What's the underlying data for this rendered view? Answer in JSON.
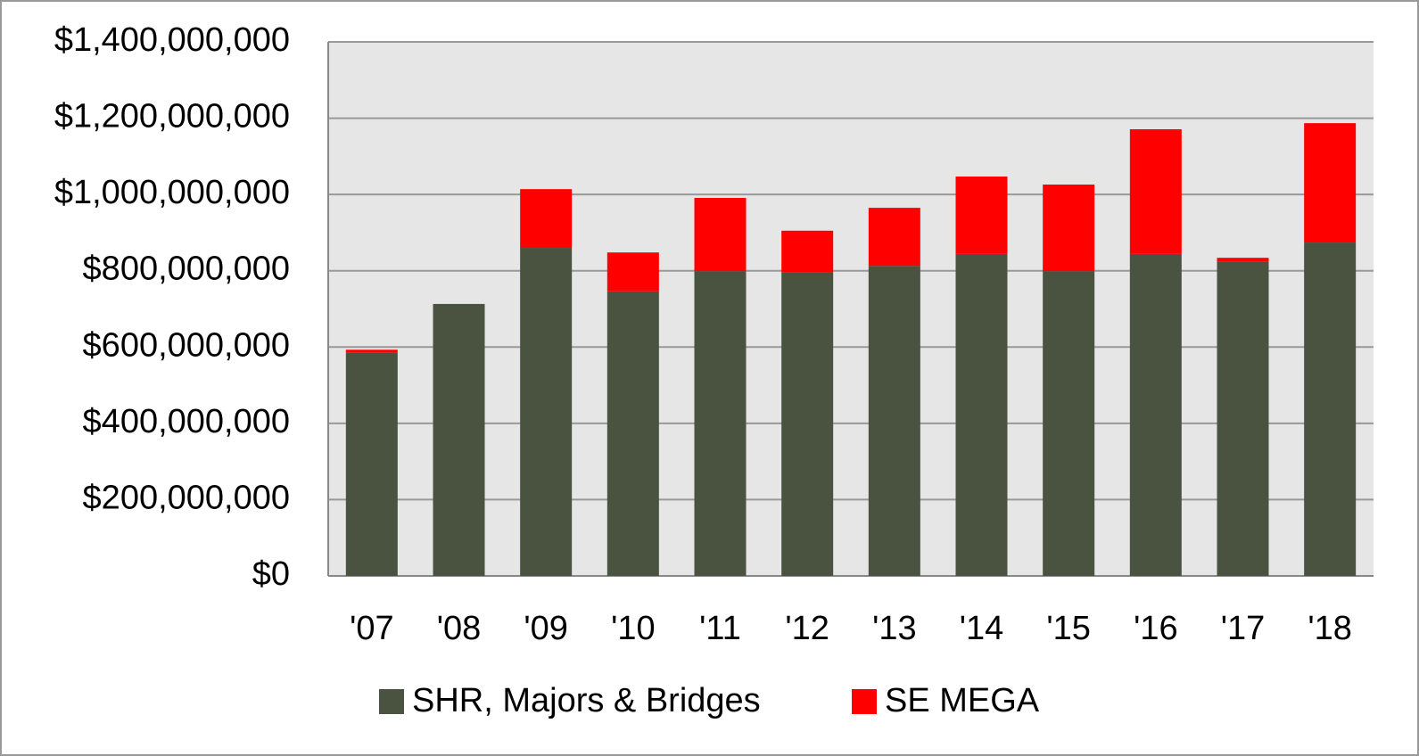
{
  "chart_data": {
    "type": "stacked_bar",
    "categories": [
      "'07",
      "'08",
      "'09",
      "'10",
      "'11",
      "'12",
      "'13",
      "'14",
      "'15",
      "'16",
      "'17",
      "'18"
    ],
    "series": [
      {
        "name": "SHR, Majors & Bridges",
        "color": "#4a5340",
        "values": [
          585000000,
          713000000,
          860000000,
          746000000,
          799000000,
          795000000,
          813000000,
          844000000,
          799000000,
          844000000,
          823000000,
          874000000
        ]
      },
      {
        "name": "SE MEGA",
        "color": "#ff0000",
        "values": [
          8000000,
          0,
          154000000,
          102000000,
          192000000,
          110000000,
          152000000,
          203000000,
          227000000,
          327000000,
          11000000,
          313000000
        ]
      }
    ],
    "ylim": [
      0,
      1400000000
    ],
    "yticks": [
      {
        "value": 0,
        "label": "$0"
      },
      {
        "value": 200000000,
        "label": "$200,000,000"
      },
      {
        "value": 400000000,
        "label": "$400,000,000"
      },
      {
        "value": 600000000,
        "label": "$600,000,000"
      },
      {
        "value": 800000000,
        "label": "$800,000,000"
      },
      {
        "value": 1000000000,
        "label": "$1,000,000,000"
      },
      {
        "value": 1200000000,
        "label": "$1,200,000,000"
      },
      {
        "value": 1400000000,
        "label": "$1,400,000,000"
      }
    ],
    "grid": true,
    "legend": "bottom"
  }
}
